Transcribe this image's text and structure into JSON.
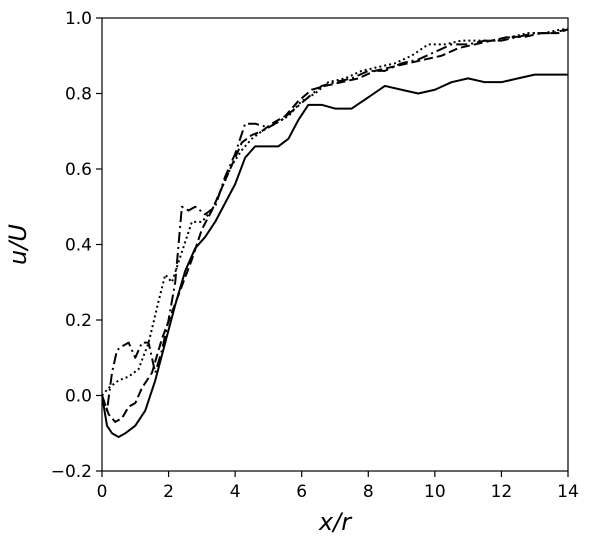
{
  "chart_data": {
    "type": "line",
    "title": "",
    "xlabel": "x/r",
    "ylabel": "u/U",
    "xlim": [
      0,
      14
    ],
    "ylim": [
      -0.2,
      1.0
    ],
    "xticks": [
      0,
      2,
      4,
      6,
      8,
      10,
      12,
      14
    ],
    "yticks": [
      -0.2,
      0.0,
      0.2,
      0.4,
      0.6,
      0.8,
      1.0
    ],
    "xtick_labels": [
      "0",
      "2",
      "4",
      "6",
      "8",
      "10",
      "12",
      "14"
    ],
    "ytick_labels": [
      "−0.2",
      "0.0",
      "0.2",
      "0.4",
      "0.6",
      "0.8",
      "1.0"
    ],
    "grid": false,
    "legend": "none",
    "series": [
      {
        "style": "solid",
        "x": [
          0,
          0.15,
          0.3,
          0.5,
          0.7,
          1.0,
          1.3,
          1.6,
          1.9,
          2.2,
          2.5,
          2.8,
          3.1,
          3.4,
          3.7,
          4.0,
          4.3,
          4.6,
          5.0,
          5.3,
          5.6,
          5.9,
          6.2,
          6.6,
          7.0,
          7.5,
          8.0,
          8.5,
          9.0,
          9.5,
          10.0,
          10.5,
          11.0,
          11.5,
          12.0,
          12.5,
          13.0,
          13.5,
          14.0
        ],
        "y": [
          0.0,
          -0.08,
          -0.1,
          -0.11,
          -0.1,
          -0.08,
          -0.04,
          0.04,
          0.14,
          0.24,
          0.33,
          0.39,
          0.42,
          0.46,
          0.51,
          0.56,
          0.63,
          0.66,
          0.66,
          0.66,
          0.68,
          0.73,
          0.77,
          0.77,
          0.76,
          0.76,
          0.79,
          0.82,
          0.81,
          0.8,
          0.81,
          0.83,
          0.84,
          0.83,
          0.83,
          0.84,
          0.85,
          0.85,
          0.85
        ]
      },
      {
        "style": "dashed",
        "x": [
          0,
          0.2,
          0.4,
          0.6,
          0.8,
          1.0,
          1.2,
          1.5,
          1.8,
          2.1,
          2.4,
          2.7,
          3.0,
          3.3,
          3.6,
          3.9,
          4.2,
          4.5,
          4.8,
          5.1,
          5.5,
          5.9,
          6.3,
          6.7,
          7.2,
          7.7,
          8.2,
          8.7,
          9.2,
          9.7,
          10.2,
          10.7,
          11.2,
          11.7,
          12.2,
          12.7,
          13.2,
          13.7,
          14.0
        ],
        "y": [
          0.0,
          -0.05,
          -0.07,
          -0.06,
          -0.03,
          -0.02,
          0.02,
          0.06,
          0.15,
          0.22,
          0.29,
          0.36,
          0.44,
          0.49,
          0.55,
          0.61,
          0.67,
          0.69,
          0.7,
          0.72,
          0.74,
          0.78,
          0.81,
          0.82,
          0.83,
          0.84,
          0.86,
          0.87,
          0.88,
          0.89,
          0.9,
          0.92,
          0.93,
          0.94,
          0.95,
          0.95,
          0.96,
          0.96,
          0.97
        ]
      },
      {
        "style": "dotted",
        "x": [
          0,
          0.2,
          0.5,
          0.8,
          1.1,
          1.4,
          1.7,
          1.9,
          2.1,
          2.4,
          2.7,
          3.0,
          3.3,
          3.6,
          3.9,
          4.2,
          4.5,
          4.8,
          5.2,
          5.6,
          6.0,
          6.4,
          6.8,
          7.3,
          7.8,
          8.3,
          8.8,
          9.3,
          9.8,
          10.3,
          10.8,
          11.3,
          11.8,
          12.3,
          12.8,
          13.3,
          13.8,
          14.0
        ],
        "y": [
          0.0,
          0.02,
          0.04,
          0.05,
          0.07,
          0.14,
          0.25,
          0.32,
          0.3,
          0.38,
          0.46,
          0.46,
          0.49,
          0.55,
          0.61,
          0.65,
          0.68,
          0.7,
          0.72,
          0.74,
          0.78,
          0.8,
          0.83,
          0.84,
          0.86,
          0.87,
          0.88,
          0.9,
          0.93,
          0.93,
          0.94,
          0.94,
          0.94,
          0.95,
          0.96,
          0.96,
          0.97,
          0.97
        ]
      },
      {
        "style": "dashdot",
        "x": [
          0,
          0.15,
          0.3,
          0.45,
          0.6,
          0.8,
          1.0,
          1.2,
          1.4,
          1.6,
          1.8,
          2.0,
          2.2,
          2.4,
          2.6,
          2.8,
          3.1,
          3.4,
          3.7,
          4.0,
          4.3,
          4.6,
          5.0,
          5.4,
          5.8,
          6.2,
          6.6,
          7.0,
          7.5,
          8.0,
          8.5,
          9.0,
          9.5,
          10.0,
          10.5,
          11.0,
          11.5,
          12.0,
          12.5,
          13.0,
          13.5,
          14.0
        ],
        "y": [
          0.0,
          -0.04,
          0.06,
          0.12,
          0.13,
          0.14,
          0.1,
          0.14,
          0.14,
          0.06,
          0.12,
          0.2,
          0.3,
          0.5,
          0.49,
          0.5,
          0.48,
          0.5,
          0.58,
          0.64,
          0.72,
          0.72,
          0.71,
          0.73,
          0.76,
          0.79,
          0.82,
          0.83,
          0.84,
          0.86,
          0.86,
          0.88,
          0.89,
          0.91,
          0.93,
          0.93,
          0.94,
          0.94,
          0.95,
          0.96,
          0.96,
          0.97
        ]
      }
    ]
  }
}
